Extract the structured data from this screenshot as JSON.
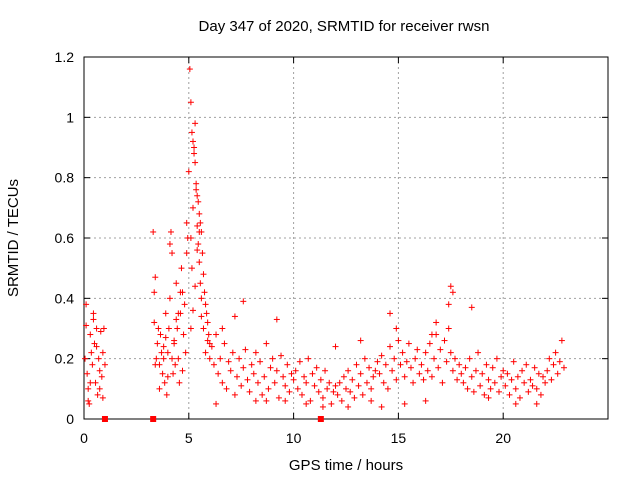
{
  "chart_data": {
    "type": "scatter",
    "title": "Day 347 of 2020, SRMTID for receiver rwsn",
    "xlabel": "GPS time / hours",
    "ylabel": "SRMTID / TECUs",
    "xlim": [
      0,
      25
    ],
    "ylim": [
      0,
      1.2
    ],
    "xticks": [
      0,
      5,
      10,
      15,
      20
    ],
    "yticks": [
      0,
      0.2,
      0.4,
      0.6,
      0.8,
      1,
      1.2
    ],
    "ytick_labels": [
      "0",
      "0.2",
      "0.4",
      "0.6",
      "0.8",
      "1",
      "1.2"
    ],
    "grid": true,
    "marker": "plus",
    "color": "#ff0000",
    "series": [
      {
        "name": "SRMTID",
        "x": [
          0.05,
          0.1,
          0.15,
          0.2,
          0.25,
          0.3,
          0.35,
          0.4,
          0.45,
          0.5,
          0.55,
          0.6,
          0.65,
          0.7,
          0.75,
          0.8,
          0.85,
          0.9,
          0.95,
          1.0,
          0.1,
          0.2,
          0.3,
          0.45,
          0.6,
          0.75,
          0.9,
          3.3,
          3.35,
          3.4,
          3.45,
          3.5,
          3.55,
          3.6,
          3.65,
          3.7,
          3.75,
          3.8,
          3.85,
          3.9,
          3.95,
          4.0,
          4.05,
          4.1,
          4.15,
          4.2,
          4.25,
          4.3,
          4.35,
          4.4,
          4.45,
          4.5,
          4.55,
          4.6,
          4.65,
          4.7,
          4.75,
          4.8,
          4.85,
          4.9,
          4.95,
          3.35,
          3.4,
          3.6,
          3.8,
          4.1,
          4.3,
          4.5,
          4.7,
          4.9,
          4.2,
          4.4,
          3.9,
          4.6,
          4.0,
          5.0,
          5.05,
          5.1,
          5.15,
          5.2,
          5.25,
          5.3,
          5.35,
          5.4,
          5.45,
          5.5,
          5.55,
          5.6,
          5.65,
          5.7,
          5.75,
          5.8,
          5.85,
          5.9,
          5.95,
          6.0,
          5.1,
          5.2,
          5.15,
          5.25,
          5.3,
          5.35,
          5.4,
          5.45,
          5.5,
          5.55,
          5.6,
          5.2,
          5.1,
          5.3,
          5.4,
          5.5,
          5.6,
          5.7,
          5.8,
          5.9,
          6.0,
          6.1,
          6.2,
          6.3,
          6.4,
          6.5,
          6.6,
          6.7,
          6.8,
          6.9,
          7.0,
          7.1,
          7.2,
          7.3,
          7.4,
          7.5,
          7.6,
          7.7,
          7.8,
          7.9,
          8.0,
          8.1,
          8.2,
          8.3,
          8.4,
          8.5,
          8.6,
          8.7,
          8.8,
          8.9,
          9.0,
          9.1,
          9.2,
          9.3,
          9.4,
          9.5,
          9.6,
          9.7,
          9.8,
          9.9,
          10.0,
          10.1,
          10.2,
          10.3,
          10.4,
          10.5,
          10.6,
          10.7,
          10.8,
          10.9,
          11.0,
          11.1,
          11.2,
          11.3,
          11.4,
          11.5,
          11.6,
          11.7,
          11.8,
          11.9,
          12.0,
          12.1,
          12.2,
          12.3,
          12.4,
          12.5,
          12.6,
          12.7,
          12.8,
          12.9,
          13.0,
          13.1,
          13.2,
          13.3,
          13.4,
          13.5,
          13.6,
          13.7,
          13.8,
          13.9,
          14.0,
          14.1,
          14.2,
          14.3,
          14.4,
          14.5,
          14.6,
          14.7,
          14.8,
          14.9,
          15.0,
          15.1,
          15.2,
          15.3,
          15.4,
          15.5,
          15.6,
          15.7,
          15.8,
          15.9,
          16.0,
          16.1,
          16.2,
          16.3,
          16.4,
          16.5,
          16.6,
          16.7,
          16.8,
          16.9,
          17.0,
          17.1,
          17.2,
          17.3,
          17.4,
          17.5,
          17.6,
          17.7,
          17.8,
          17.9,
          18.0,
          18.1,
          18.2,
          18.3,
          18.4,
          18.5,
          18.6,
          18.7,
          18.8,
          18.9,
          19.0,
          19.1,
          19.2,
          19.3,
          19.4,
          19.5,
          19.6,
          19.7,
          19.8,
          19.9,
          20.0,
          20.1,
          20.2,
          20.3,
          20.4,
          20.5,
          20.6,
          20.7,
          20.8,
          20.9,
          21.0,
          21.1,
          21.2,
          21.3,
          21.4,
          21.5,
          21.6,
          21.7,
          21.8,
          21.9,
          22.0,
          22.1,
          22.2,
          22.3,
          22.4,
          22.5,
          22.6,
          22.7,
          22.8,
          22.9,
          7.6,
          9.2,
          14.6,
          14.9,
          17.5,
          17.6,
          17.4,
          18.5,
          16.8,
          16.6,
          13.2,
          12.0,
          7.2,
          6.6,
          6.3,
          8.7,
          11.4,
          13.7,
          15.3,
          19.3,
          21.6,
          10.6,
          9.6,
          12.6,
          16.3,
          20.6,
          8.2,
          14.2
        ],
        "y": [
          0.2,
          0.38,
          0.15,
          0.1,
          0.05,
          0.28,
          0.22,
          0.18,
          0.33,
          0.25,
          0.12,
          0.3,
          0.08,
          0.2,
          0.16,
          0.29,
          0.14,
          0.22,
          0.3,
          0.18,
          0.31,
          0.06,
          0.12,
          0.35,
          0.24,
          0.1,
          0.07,
          0.62,
          0.42,
          0.47,
          0.2,
          0.25,
          0.3,
          0.18,
          0.28,
          0.22,
          0.15,
          0.2,
          0.12,
          0.35,
          0.08,
          0.22,
          0.3,
          0.4,
          0.62,
          0.55,
          0.15,
          0.25,
          0.18,
          0.45,
          0.3,
          0.2,
          0.12,
          0.35,
          0.5,
          0.42,
          0.28,
          0.38,
          0.22,
          0.55,
          0.6,
          0.32,
          0.18,
          0.1,
          0.24,
          0.58,
          0.26,
          0.35,
          0.16,
          0.65,
          0.2,
          0.33,
          0.27,
          0.42,
          0.14,
          0.82,
          1.16,
          1.05,
          0.95,
          0.92,
          0.9,
          0.85,
          0.78,
          0.74,
          0.72,
          0.68,
          0.65,
          0.62,
          0.55,
          0.48,
          0.42,
          0.38,
          0.35,
          0.32,
          0.28,
          0.25,
          0.6,
          0.7,
          0.5,
          0.88,
          0.98,
          0.76,
          0.64,
          0.58,
          0.52,
          0.45,
          0.4,
          0.36,
          0.3,
          0.44,
          0.56,
          0.62,
          0.34,
          0.3,
          0.22,
          0.26,
          0.2,
          0.24,
          0.18,
          0.28,
          0.15,
          0.2,
          0.12,
          0.25,
          0.1,
          0.19,
          0.16,
          0.22,
          0.08,
          0.14,
          0.2,
          0.11,
          0.17,
          0.23,
          0.13,
          0.09,
          0.18,
          0.15,
          0.22,
          0.12,
          0.19,
          0.08,
          0.14,
          0.25,
          0.1,
          0.17,
          0.2,
          0.12,
          0.16,
          0.07,
          0.21,
          0.14,
          0.11,
          0.18,
          0.09,
          0.15,
          0.13,
          0.16,
          0.1,
          0.19,
          0.08,
          0.14,
          0.12,
          0.2,
          0.06,
          0.15,
          0.11,
          0.17,
          0.09,
          0.13,
          0.07,
          0.16,
          0.1,
          0.12,
          0.05,
          0.09,
          0.11,
          0.08,
          0.12,
          0.06,
          0.14,
          0.1,
          0.16,
          0.09,
          0.13,
          0.07,
          0.18,
          0.11,
          0.15,
          0.08,
          0.2,
          0.12,
          0.17,
          0.1,
          0.14,
          0.16,
          0.19,
          0.15,
          0.21,
          0.12,
          0.18,
          0.1,
          0.24,
          0.16,
          0.2,
          0.13,
          0.26,
          0.18,
          0.22,
          0.14,
          0.19,
          0.25,
          0.17,
          0.12,
          0.2,
          0.23,
          0.15,
          0.18,
          0.13,
          0.22,
          0.16,
          0.25,
          0.14,
          0.2,
          0.28,
          0.17,
          0.23,
          0.12,
          0.26,
          0.19,
          0.3,
          0.22,
          0.16,
          0.2,
          0.13,
          0.18,
          0.15,
          0.12,
          0.17,
          0.1,
          0.2,
          0.14,
          0.09,
          0.16,
          0.22,
          0.11,
          0.15,
          0.08,
          0.18,
          0.13,
          0.1,
          0.17,
          0.12,
          0.2,
          0.09,
          0.14,
          0.16,
          0.11,
          0.15,
          0.08,
          0.13,
          0.19,
          0.1,
          0.14,
          0.07,
          0.16,
          0.12,
          0.18,
          0.09,
          0.13,
          0.11,
          0.17,
          0.1,
          0.15,
          0.08,
          0.14,
          0.12,
          0.16,
          0.2,
          0.13,
          0.18,
          0.22,
          0.15,
          0.19,
          0.26,
          0.17,
          0.39,
          0.33,
          0.35,
          0.3,
          0.44,
          0.42,
          0.38,
          0.37,
          0.32,
          0.28,
          0.26,
          0.24,
          0.34,
          0.3,
          0.05,
          0.06,
          0.04,
          0.06,
          0.05,
          0.07,
          0.05,
          0.05,
          0.06,
          0.04,
          0.06,
          0.05,
          0.06,
          0.04
        ],
        "outliers_zero": [
          1.0,
          3.3,
          11.3
        ]
      }
    ]
  }
}
